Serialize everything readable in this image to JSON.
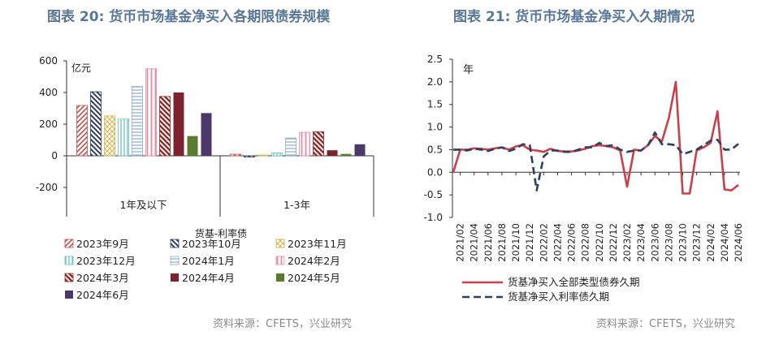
{
  "left": {
    "title": "图表 20: 货币市场基金净买入各期限债券规模",
    "source": "资料来源：CFETS，兴业研究",
    "unit_label": "亿元",
    "legend_title": "货基-利率债"
  },
  "right": {
    "title": "图表 21: 货币市场基金净买入久期情况",
    "source": "资料来源：CFETS，兴业研究",
    "unit_label": "年"
  },
  "colors": {
    "title": "#5a7796",
    "s_2023_09": "#c0504d",
    "s_2023_10": "#2e3f5c",
    "s_2023_11": "#d4b24a",
    "s_2023_12": "#68c2c4",
    "s_2024_01": "#8eaac8",
    "s_2024_02": "#e58aa0",
    "s_2024_03": "#8b2c2c",
    "s_2024_04": "#7b2430",
    "s_2024_05": "#5b7a2e",
    "s_2024_06": "#4a3868",
    "line_all": "#c8414b",
    "line_rate": "#2f3f5f"
  },
  "chart_data": [
    {
      "type": "bar",
      "categories": [
        "1年及以下",
        "1-3年"
      ],
      "ylim": [
        -200,
        600
      ],
      "yticks": [
        "600",
        "400",
        "200",
        "0",
        "-200"
      ],
      "grid": false,
      "legend_position": "bottom",
      "series": [
        {
          "name": "2023年9月",
          "values": [
            318,
            10
          ],
          "pattern": "diag-right"
        },
        {
          "name": "2023年10月",
          "values": [
            405,
            -8
          ],
          "pattern": "diag-left"
        },
        {
          "name": "2023年11月",
          "values": [
            252,
            5
          ],
          "pattern": "checker"
        },
        {
          "name": "2023年12月",
          "values": [
            232,
            18
          ],
          "pattern": "vertical"
        },
        {
          "name": "2024年1月",
          "values": [
            438,
            112
          ],
          "pattern": "horizontal"
        },
        {
          "name": "2024年2月",
          "values": [
            550,
            148
          ],
          "pattern": "vertical-thick"
        },
        {
          "name": "2024年3月",
          "values": [
            375,
            152
          ],
          "pattern": "diag-thick"
        },
        {
          "name": "2024年4月",
          "values": [
            400,
            35
          ],
          "pattern": "solid"
        },
        {
          "name": "2024年5月",
          "values": [
            125,
            12
          ],
          "pattern": "solid"
        },
        {
          "name": "2024年6月",
          "values": [
            270,
            73
          ],
          "pattern": "solid"
        }
      ]
    },
    {
      "type": "line",
      "ylim": [
        -1.0,
        2.5
      ],
      "yticks": [
        "2.5",
        "2.0",
        "1.5",
        "1.0",
        "0.5",
        "0.0",
        "-0.5",
        "-1.0"
      ],
      "xticks": [
        "2021/02",
        "2021/04",
        "2021/06",
        "2021/08",
        "2021/10",
        "2021/12",
        "2022/02",
        "2022/04",
        "2022/06",
        "2022/08",
        "2022/10",
        "2022/12",
        "2023/02",
        "2023/04",
        "2023/06",
        "2023/08",
        "2023/10",
        "2023/12",
        "2024/02",
        "2024/04",
        "2024/06"
      ],
      "grid": false,
      "legend_position": "bottom",
      "x": [
        "2021/01",
        "2021/02",
        "2021/03",
        "2021/04",
        "2021/05",
        "2021/06",
        "2021/07",
        "2021/08",
        "2021/09",
        "2021/10",
        "2021/11",
        "2021/12",
        "2022/01",
        "2022/02",
        "2022/03",
        "2022/04",
        "2022/05",
        "2022/06",
        "2022/07",
        "2022/08",
        "2022/09",
        "2022/10",
        "2022/11",
        "2022/12",
        "2023/01",
        "2023/02",
        "2023/03",
        "2023/04",
        "2023/05",
        "2023/06",
        "2023/07",
        "2023/08",
        "2023/09",
        "2023/10",
        "2023/11",
        "2023/12",
        "2024/01",
        "2024/02",
        "2024/03",
        "2024/04",
        "2024/05",
        "2024/06"
      ],
      "series": [
        {
          "name": "货基净买入全部类型债券久期",
          "style": "solid",
          "values": [
            0.0,
            0.5,
            0.5,
            0.53,
            0.52,
            0.5,
            0.53,
            0.55,
            0.5,
            0.57,
            0.6,
            0.5,
            0.48,
            0.45,
            0.52,
            0.47,
            0.46,
            0.46,
            0.48,
            0.52,
            0.58,
            0.6,
            0.58,
            0.55,
            0.48,
            -0.32,
            0.5,
            0.48,
            0.6,
            0.8,
            0.68,
            1.2,
            2.0,
            -0.47,
            -0.47,
            0.48,
            0.55,
            0.65,
            1.35,
            -0.38,
            -0.4,
            -0.28
          ]
        },
        {
          "name": "货基净买入利率债久期",
          "style": "dashed",
          "values": [
            0.5,
            0.5,
            0.48,
            0.52,
            0.5,
            0.47,
            0.52,
            0.55,
            0.47,
            0.52,
            0.62,
            0.6,
            -0.4,
            0.35,
            0.48,
            0.48,
            0.45,
            0.45,
            0.5,
            0.55,
            0.55,
            0.65,
            0.58,
            0.6,
            0.5,
            0.45,
            0.48,
            0.48,
            0.6,
            0.88,
            0.62,
            0.62,
            0.6,
            0.4,
            0.45,
            0.5,
            0.6,
            0.7,
            0.72,
            0.5,
            0.5,
            0.63
          ]
        }
      ]
    }
  ]
}
